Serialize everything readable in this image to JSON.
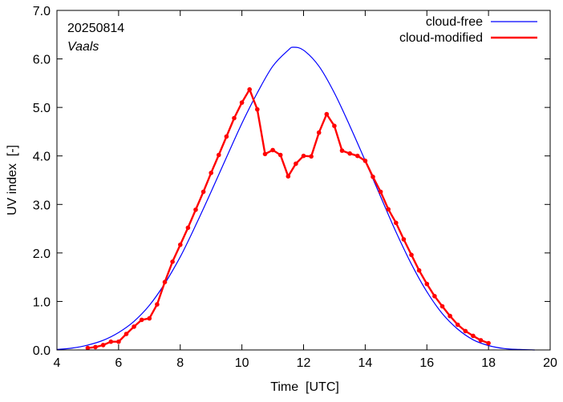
{
  "chart_data": {
    "type": "line",
    "title": "",
    "annotations": {
      "date": "20250814",
      "location": "Vaals"
    },
    "xlabel": "Time  [UTC]",
    "ylabel": "UV index  [-]",
    "xlim": [
      4,
      20
    ],
    "ylim": [
      0,
      7
    ],
    "x_ticks": [
      4,
      6,
      8,
      10,
      12,
      14,
      16,
      18,
      20
    ],
    "x_tick_labels": [
      "4",
      "6",
      "8",
      "10",
      "12",
      "14",
      "16",
      "18",
      "20"
    ],
    "y_ticks": [
      0,
      1,
      2,
      3,
      4,
      5,
      6,
      7
    ],
    "y_tick_labels": [
      "0.0",
      "1.0",
      "2.0",
      "3.0",
      "4.0",
      "5.0",
      "6.0",
      "7.0"
    ],
    "legend_position": "top-right",
    "series": [
      {
        "name": "cloud-free",
        "color": "#0000ff",
        "markers": false,
        "x": [
          4.0,
          4.5,
          5.0,
          5.5,
          6.0,
          6.5,
          7.0,
          7.5,
          8.0,
          8.5,
          9.0,
          9.5,
          10.0,
          10.5,
          11.0,
          11.5,
          11.67,
          12.0,
          12.5,
          13.0,
          13.5,
          14.0,
          14.5,
          15.0,
          15.5,
          16.0,
          16.5,
          17.0,
          17.5,
          18.0,
          18.5,
          19.0,
          19.5
        ],
        "y": [
          0.01,
          0.04,
          0.1,
          0.2,
          0.36,
          0.59,
          0.92,
          1.37,
          1.92,
          2.57,
          3.26,
          3.97,
          4.67,
          5.3,
          5.85,
          6.18,
          6.24,
          6.18,
          5.85,
          5.3,
          4.62,
          3.9,
          3.16,
          2.43,
          1.77,
          1.2,
          0.75,
          0.43,
          0.21,
          0.09,
          0.03,
          0.01,
          0.0
        ]
      },
      {
        "name": "cloud-modified",
        "color": "#ff0000",
        "markers": true,
        "x": [
          5.0,
          5.25,
          5.5,
          5.75,
          6.0,
          6.25,
          6.5,
          6.75,
          7.0,
          7.25,
          7.5,
          7.75,
          8.0,
          8.25,
          8.5,
          8.75,
          9.0,
          9.25,
          9.5,
          9.75,
          10.0,
          10.25,
          10.5,
          10.75,
          11.0,
          11.25,
          11.5,
          11.75,
          12.0,
          12.25,
          12.5,
          12.75,
          13.0,
          13.25,
          13.5,
          13.75,
          14.0,
          14.25,
          14.5,
          14.75,
          15.0,
          15.25,
          15.5,
          15.75,
          16.0,
          16.25,
          16.5,
          16.75,
          17.0,
          17.25,
          17.5,
          17.75,
          18.0
        ],
        "y": [
          0.04,
          0.06,
          0.1,
          0.17,
          0.17,
          0.33,
          0.48,
          0.62,
          0.65,
          0.94,
          1.4,
          1.82,
          2.17,
          2.52,
          2.89,
          3.26,
          3.65,
          4.02,
          4.4,
          4.78,
          5.1,
          5.37,
          4.96,
          4.04,
          4.12,
          4.02,
          3.58,
          3.84,
          4.0,
          3.99,
          4.48,
          4.86,
          4.62,
          4.11,
          4.05,
          4.0,
          3.9,
          3.57,
          3.26,
          2.9,
          2.62,
          2.28,
          1.96,
          1.64,
          1.36,
          1.11,
          0.9,
          0.7,
          0.52,
          0.39,
          0.29,
          0.2,
          0.14
        ]
      }
    ]
  }
}
